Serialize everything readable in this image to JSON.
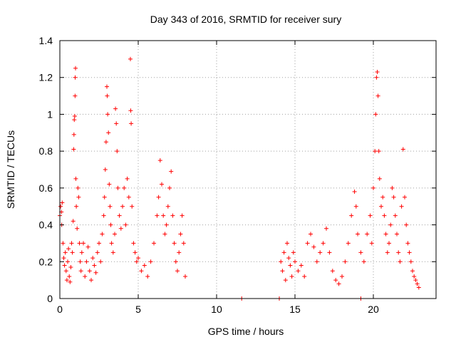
{
  "chart_data": {
    "type": "scatter",
    "title": "Day 343 of 2016, SRMTID for receiver sury",
    "xlabel": "GPS time / hours",
    "ylabel": "SRMTID / TECUs",
    "xlim": [
      0,
      24
    ],
    "ylim": [
      0,
      1.4
    ],
    "xticks": [
      0,
      5,
      10,
      15,
      20
    ],
    "xtick_labels": [
      "0",
      "5",
      "10",
      "15",
      "20"
    ],
    "yticks": [
      0,
      0.2,
      0.4,
      0.6,
      0.8,
      1.0,
      1.2,
      1.4
    ],
    "ytick_labels": [
      "0",
      "0.2",
      "0.4",
      "0.6",
      "0.8",
      "1",
      "1.2",
      "1.4"
    ],
    "grid": true,
    "marker": "plus",
    "color": "#ff0000",
    "series": [
      {
        "name": "SRMTID",
        "points": [
          [
            0.0,
            0.45
          ],
          [
            0.05,
            0.5
          ],
          [
            0.1,
            0.47
          ],
          [
            0.12,
            0.4
          ],
          [
            0.15,
            0.52
          ],
          [
            0.2,
            0.3
          ],
          [
            0.25,
            0.22
          ],
          [
            0.3,
            0.18
          ],
          [
            0.35,
            0.25
          ],
          [
            0.4,
            0.15
          ],
          [
            0.45,
            0.1
          ],
          [
            0.5,
            0.2
          ],
          [
            0.55,
            0.27
          ],
          [
            0.6,
            0.12
          ],
          [
            0.65,
            0.09
          ],
          [
            0.7,
            0.17
          ],
          [
            0.75,
            0.3
          ],
          [
            0.8,
            0.25
          ],
          [
            0.85,
            0.42
          ],
          [
            0.88,
            0.81
          ],
          [
            0.9,
            0.89
          ],
          [
            0.92,
            0.97
          ],
          [
            0.95,
            0.99
          ],
          [
            0.97,
            1.1
          ],
          [
            0.98,
            1.2
          ],
          [
            1.0,
            1.25
          ],
          [
            1.02,
            0.65
          ],
          [
            1.05,
            0.5
          ],
          [
            1.1,
            0.38
          ],
          [
            1.15,
            0.6
          ],
          [
            1.2,
            0.55
          ],
          [
            1.25,
            0.3
          ],
          [
            1.3,
            0.2
          ],
          [
            1.35,
            0.15
          ],
          [
            1.4,
            0.25
          ],
          [
            1.5,
            0.3
          ],
          [
            1.6,
            0.12
          ],
          [
            1.7,
            0.2
          ],
          [
            1.8,
            0.28
          ],
          [
            1.9,
            0.15
          ],
          [
            2.0,
            0.1
          ],
          [
            2.1,
            0.22
          ],
          [
            2.2,
            0.18
          ],
          [
            2.3,
            0.14
          ],
          [
            2.4,
            0.25
          ],
          [
            2.5,
            0.3
          ],
          [
            2.6,
            0.2
          ],
          [
            2.7,
            0.35
          ],
          [
            2.8,
            0.45
          ],
          [
            2.85,
            0.55
          ],
          [
            2.9,
            0.7
          ],
          [
            2.95,
            0.85
          ],
          [
            3.0,
            1.15
          ],
          [
            3.02,
            1.1
          ],
          [
            3.05,
            1.0
          ],
          [
            3.1,
            0.9
          ],
          [
            3.15,
            0.62
          ],
          [
            3.2,
            0.5
          ],
          [
            3.25,
            0.4
          ],
          [
            3.3,
            0.3
          ],
          [
            3.4,
            0.25
          ],
          [
            3.5,
            0.35
          ],
          [
            3.55,
            1.03
          ],
          [
            3.6,
            0.95
          ],
          [
            3.65,
            0.8
          ],
          [
            3.7,
            0.6
          ],
          [
            3.8,
            0.45
          ],
          [
            3.9,
            0.38
          ],
          [
            4.0,
            0.5
          ],
          [
            4.1,
            0.6
          ],
          [
            4.2,
            0.4
          ],
          [
            4.3,
            0.65
          ],
          [
            4.4,
            0.55
          ],
          [
            4.5,
            1.3
          ],
          [
            4.52,
            1.02
          ],
          [
            4.55,
            0.95
          ],
          [
            4.6,
            0.5
          ],
          [
            4.7,
            0.3
          ],
          [
            4.8,
            0.25
          ],
          [
            4.9,
            0.2
          ],
          [
            5.0,
            0.22
          ],
          [
            5.2,
            0.15
          ],
          [
            5.4,
            0.18
          ],
          [
            5.6,
            0.12
          ],
          [
            5.8,
            0.2
          ],
          [
            6.0,
            0.3
          ],
          [
            6.2,
            0.45
          ],
          [
            6.3,
            0.55
          ],
          [
            6.4,
            0.75
          ],
          [
            6.5,
            0.62
          ],
          [
            6.6,
            0.45
          ],
          [
            6.7,
            0.35
          ],
          [
            6.8,
            0.4
          ],
          [
            6.9,
            0.5
          ],
          [
            7.0,
            0.6
          ],
          [
            7.1,
            0.69
          ],
          [
            7.2,
            0.45
          ],
          [
            7.3,
            0.3
          ],
          [
            7.4,
            0.2
          ],
          [
            7.5,
            0.15
          ],
          [
            7.6,
            0.25
          ],
          [
            7.7,
            0.35
          ],
          [
            7.8,
            0.45
          ],
          [
            7.9,
            0.3
          ],
          [
            8.0,
            0.12
          ],
          [
            11.6,
            0.0
          ],
          [
            14.0,
            0.0
          ],
          [
            19.2,
            0.0
          ],
          [
            14.1,
            0.2
          ],
          [
            14.2,
            0.15
          ],
          [
            14.3,
            0.25
          ],
          [
            14.4,
            0.1
          ],
          [
            14.5,
            0.3
          ],
          [
            14.6,
            0.22
          ],
          [
            14.7,
            0.18
          ],
          [
            14.8,
            0.12
          ],
          [
            14.9,
            0.25
          ],
          [
            15.0,
            0.2
          ],
          [
            15.2,
            0.15
          ],
          [
            15.4,
            0.18
          ],
          [
            15.6,
            0.12
          ],
          [
            15.8,
            0.3
          ],
          [
            16.0,
            0.35
          ],
          [
            16.2,
            0.28
          ],
          [
            16.4,
            0.2
          ],
          [
            16.6,
            0.25
          ],
          [
            16.8,
            0.3
          ],
          [
            17.0,
            0.38
          ],
          [
            17.2,
            0.25
          ],
          [
            17.4,
            0.15
          ],
          [
            17.6,
            0.1
          ],
          [
            17.8,
            0.08
          ],
          [
            18.0,
            0.12
          ],
          [
            18.2,
            0.2
          ],
          [
            18.4,
            0.3
          ],
          [
            18.6,
            0.45
          ],
          [
            18.8,
            0.58
          ],
          [
            18.9,
            0.5
          ],
          [
            19.0,
            0.35
          ],
          [
            19.2,
            0.25
          ],
          [
            19.4,
            0.2
          ],
          [
            19.6,
            0.35
          ],
          [
            19.8,
            0.45
          ],
          [
            19.9,
            0.3
          ],
          [
            20.0,
            0.6
          ],
          [
            20.1,
            0.8
          ],
          [
            20.15,
            1.0
          ],
          [
            20.2,
            1.2
          ],
          [
            20.25,
            1.23
          ],
          [
            20.3,
            1.1
          ],
          [
            20.35,
            0.8
          ],
          [
            20.4,
            0.65
          ],
          [
            20.5,
            0.5
          ],
          [
            20.6,
            0.55
          ],
          [
            20.7,
            0.45
          ],
          [
            20.8,
            0.35
          ],
          [
            20.9,
            0.25
          ],
          [
            21.0,
            0.3
          ],
          [
            21.1,
            0.4
          ],
          [
            21.2,
            0.6
          ],
          [
            21.3,
            0.55
          ],
          [
            21.4,
            0.45
          ],
          [
            21.5,
            0.35
          ],
          [
            21.6,
            0.25
          ],
          [
            21.7,
            0.2
          ],
          [
            21.8,
            0.5
          ],
          [
            21.9,
            0.81
          ],
          [
            22.0,
            0.55
          ],
          [
            22.1,
            0.4
          ],
          [
            22.2,
            0.3
          ],
          [
            22.3,
            0.25
          ],
          [
            22.4,
            0.2
          ],
          [
            22.5,
            0.15
          ],
          [
            22.6,
            0.12
          ],
          [
            22.7,
            0.1
          ],
          [
            22.8,
            0.08
          ],
          [
            22.9,
            0.06
          ]
        ]
      }
    ]
  }
}
